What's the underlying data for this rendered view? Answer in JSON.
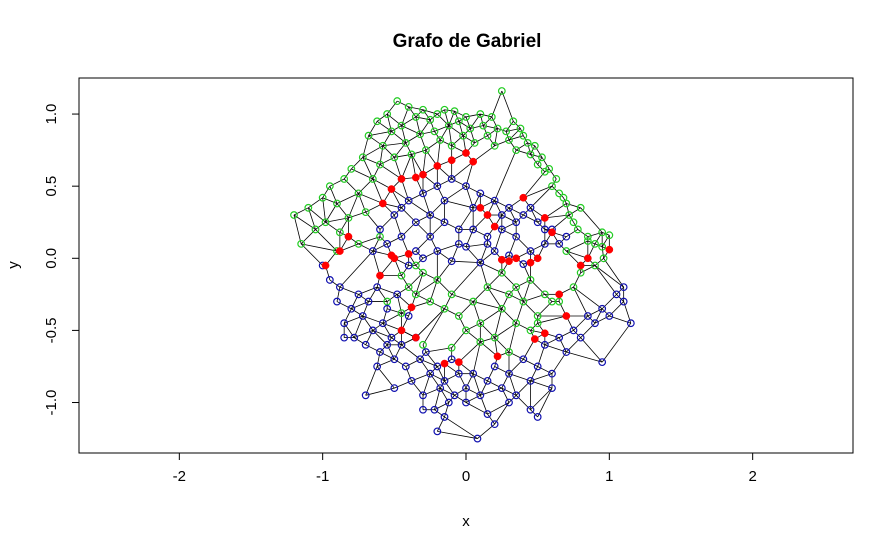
{
  "chart_data": {
    "type": "scatter",
    "title": "Grafo de Gabriel",
    "xlabel": "x",
    "ylabel": "y",
    "xlim": [
      -2.7,
      2.7
    ],
    "ylim": [
      -1.35,
      1.25
    ],
    "x_ticks": [
      -2,
      -1,
      0,
      1,
      2
    ],
    "y_ticks": [
      -1.0,
      -0.5,
      0.0,
      0.5,
      1.0
    ],
    "x_tick_labels": [
      "-2",
      "-1",
      "0",
      "1",
      "2"
    ],
    "y_tick_labels": [
      "-1.0",
      "-0.5",
      "0.0",
      "0.5",
      "1.0"
    ],
    "grid": false,
    "colors": {
      "green_points": "#22cc22",
      "blue_points": "#1010b0",
      "red_points": "#ff0000",
      "edges": "#000000"
    },
    "series": [
      {
        "style": "open-circle",
        "color": "#22cc22",
        "x": [
          -1.2,
          -1.15,
          -1.1,
          -1.05,
          -1.0,
          -0.98,
          -0.95,
          -0.9,
          -0.88,
          -0.85,
          -0.82,
          -0.8,
          -0.75,
          -0.72,
          -0.7,
          -0.68,
          -0.65,
          -0.62,
          -0.6,
          -0.58,
          -0.55,
          -0.52,
          -0.5,
          -0.48,
          -0.45,
          -0.42,
          -0.4,
          -0.38,
          -0.35,
          -0.32,
          -0.3,
          -0.28,
          -0.25,
          -0.22,
          -0.2,
          -0.18,
          -0.15,
          -0.12,
          -0.1,
          -0.08,
          -0.05,
          -0.02,
          0.0,
          0.03,
          0.06,
          0.1,
          0.12,
          0.15,
          0.18,
          0.2,
          0.22,
          0.25,
          0.28,
          0.3,
          0.33,
          0.35,
          0.38,
          0.4,
          0.43,
          0.45,
          0.48,
          0.5,
          0.53,
          0.55,
          0.58,
          0.6,
          0.63,
          0.65,
          0.68,
          0.7,
          0.72,
          0.75,
          0.78,
          0.8,
          0.85,
          0.9,
          0.95,
          1.0,
          -0.45,
          -0.4,
          -0.35,
          -0.3,
          -0.25,
          -0.2,
          -0.15,
          -0.1,
          -0.05,
          0.0,
          0.05,
          0.1,
          0.15,
          0.2,
          0.25,
          0.3,
          0.35,
          0.4,
          0.45,
          0.5,
          -0.3,
          -0.1,
          0.1,
          0.3,
          0.5,
          0.6,
          -0.9,
          -0.75,
          -0.6,
          0.7,
          0.85,
          0.95,
          -0.55,
          -0.45,
          -0.35,
          0.25,
          0.35,
          0.45,
          0.55,
          0.65,
          0.75,
          0.8,
          0.9,
          0.96
        ],
        "y": [
          0.3,
          0.1,
          0.35,
          0.2,
          0.42,
          0.25,
          0.5,
          0.38,
          0.18,
          0.55,
          0.28,
          0.62,
          0.45,
          0.7,
          0.32,
          0.85,
          0.55,
          0.95,
          0.65,
          0.78,
          1.0,
          0.88,
          0.7,
          1.09,
          0.92,
          0.8,
          1.05,
          0.72,
          0.98,
          0.86,
          1.03,
          0.75,
          0.96,
          0.88,
          1.0,
          0.82,
          1.03,
          0.92,
          0.78,
          1.02,
          0.95,
          0.85,
          0.98,
          0.9,
          0.8,
          1.0,
          0.92,
          0.85,
          0.98,
          0.78,
          0.9,
          1.16,
          0.88,
          0.82,
          0.95,
          0.75,
          0.9,
          0.85,
          0.8,
          0.72,
          0.78,
          0.65,
          0.7,
          0.6,
          0.62,
          0.5,
          0.55,
          0.45,
          0.42,
          0.38,
          0.3,
          0.25,
          0.2,
          0.35,
          0.15,
          0.1,
          0.18,
          0.16,
          -0.12,
          -0.2,
          -0.25,
          -0.1,
          -0.3,
          -0.15,
          -0.35,
          -0.25,
          -0.4,
          -0.5,
          -0.3,
          -0.45,
          -0.2,
          -0.55,
          -0.35,
          -0.25,
          -0.45,
          -0.3,
          -0.5,
          -0.4,
          -0.6,
          -0.62,
          -0.58,
          -0.65,
          -0.45,
          -0.3,
          0.05,
          0.1,
          0.15,
          0.05,
          0.12,
          0.08,
          -0.3,
          -0.38,
          -0.05,
          -0.1,
          -0.2,
          -0.15,
          -0.25,
          -0.3,
          -0.2,
          -0.1,
          -0.05,
          0.0
        ]
      },
      {
        "style": "open-circle",
        "color": "#1010b0",
        "x": [
          -1.0,
          -0.95,
          -0.9,
          -0.88,
          -0.85,
          -0.8,
          -0.78,
          -0.75,
          -0.72,
          -0.7,
          -0.68,
          -0.65,
          -0.62,
          -0.6,
          -0.58,
          -0.55,
          -0.52,
          -0.5,
          -0.48,
          -0.45,
          -0.42,
          -0.4,
          -0.38,
          -0.35,
          -0.32,
          -0.3,
          -0.28,
          -0.25,
          -0.22,
          -0.2,
          -0.18,
          -0.15,
          -0.12,
          -0.1,
          -0.08,
          -0.05,
          0.0,
          0.05,
          0.1,
          0.15,
          0.2,
          0.25,
          0.3,
          0.35,
          0.4,
          0.45,
          0.5,
          0.55,
          0.6,
          0.65,
          0.7,
          0.75,
          0.8,
          0.85,
          0.9,
          0.95,
          1.0,
          1.05,
          1.1,
          1.15,
          -0.6,
          -0.5,
          -0.4,
          -0.3,
          -0.2,
          -0.1,
          0.0,
          0.1,
          0.2,
          0.3,
          0.4,
          0.5,
          0.6,
          0.7,
          -0.45,
          -0.35,
          -0.25,
          -0.15,
          -0.05,
          0.05,
          0.15,
          0.25,
          0.35,
          0.45,
          0.55,
          0.65,
          -0.65,
          -0.55,
          -0.45,
          -0.35,
          -0.25,
          -0.15,
          -0.05,
          0.05,
          0.15,
          0.25,
          0.35,
          0.45,
          0.55,
          -0.4,
          -0.3,
          -0.2,
          -0.1,
          0.0,
          0.1,
          0.2,
          0.3,
          0.4,
          -0.2,
          0.08,
          -0.55,
          -0.62,
          0.5,
          0.3,
          0.6,
          0.45,
          0.2,
          -0.3,
          -0.5,
          -0.15,
          0.0,
          0.15,
          -0.7,
          -0.85,
          0.95,
          1.1
        ],
        "y": [
          -0.05,
          -0.15,
          -0.3,
          -0.2,
          -0.45,
          -0.35,
          -0.55,
          -0.25,
          -0.4,
          -0.6,
          -0.3,
          -0.5,
          -0.2,
          -0.65,
          -0.45,
          -0.35,
          -0.55,
          -0.7,
          -0.25,
          -0.6,
          -0.75,
          -0.4,
          -0.85,
          -0.55,
          -0.7,
          -0.95,
          -0.65,
          -0.8,
          -1.05,
          -0.75,
          -0.9,
          -0.85,
          -1.0,
          -0.7,
          -0.95,
          -0.8,
          -0.9,
          -0.8,
          -0.95,
          -0.85,
          -0.75,
          -0.9,
          -0.8,
          -0.95,
          -0.7,
          -0.85,
          -0.75,
          -0.6,
          -0.8,
          -0.55,
          -0.65,
          -0.5,
          -0.55,
          -0.4,
          -0.45,
          -0.35,
          -0.4,
          -0.25,
          -0.2,
          -0.45,
          0.2,
          0.3,
          0.4,
          0.45,
          0.5,
          0.55,
          0.5,
          0.45,
          0.4,
          0.35,
          0.3,
          0.25,
          0.2,
          0.15,
          0.35,
          0.25,
          0.3,
          0.4,
          0.2,
          0.35,
          0.15,
          0.3,
          0.25,
          0.35,
          0.2,
          0.1,
          0.05,
          0.1,
          0.15,
          0.05,
          0.15,
          0.25,
          0.1,
          0.2,
          0.1,
          0.2,
          0.15,
          0.05,
          0.1,
          -0.05,
          0.0,
          0.05,
          -0.02,
          0.08,
          -0.03,
          0.05,
          0.02,
          -0.04,
          -1.2,
          -1.25,
          -0.6,
          -0.75,
          -1.1,
          -1.0,
          -0.9,
          -1.05,
          -1.15,
          -1.05,
          -0.9,
          -1.1,
          -1.0,
          -1.08,
          -0.95,
          -0.55,
          -0.72,
          -0.3
        ]
      },
      {
        "style": "filled-circle",
        "color": "#ff0000",
        "x": [
          -0.98,
          -0.88,
          -0.82,
          -0.58,
          -0.52,
          -0.5,
          -0.45,
          -0.4,
          -0.35,
          -0.3,
          -0.2,
          -0.1,
          0.0,
          0.05,
          0.1,
          0.15,
          0.2,
          0.3,
          0.4,
          0.45,
          0.55,
          0.6,
          0.65,
          0.7,
          0.8,
          0.85,
          1.0,
          -0.6,
          -0.52,
          -0.45,
          0.25,
          0.35,
          0.5,
          0.55,
          -0.15,
          -0.05,
          0.22,
          0.48,
          -0.35,
          -0.38
        ],
        "y": [
          -0.05,
          0.05,
          0.15,
          0.38,
          0.48,
          0.0,
          0.55,
          0.03,
          0.56,
          0.58,
          0.64,
          0.68,
          0.73,
          0.67,
          0.35,
          0.3,
          0.22,
          -0.02,
          0.42,
          -0.03,
          0.28,
          0.18,
          -0.25,
          -0.4,
          -0.05,
          0.0,
          0.06,
          -0.12,
          0.02,
          -0.5,
          -0.01,
          0.0,
          0.0,
          -0.52,
          -0.73,
          -0.72,
          -0.68,
          -0.56,
          -0.55,
          -0.34
        ]
      }
    ]
  }
}
